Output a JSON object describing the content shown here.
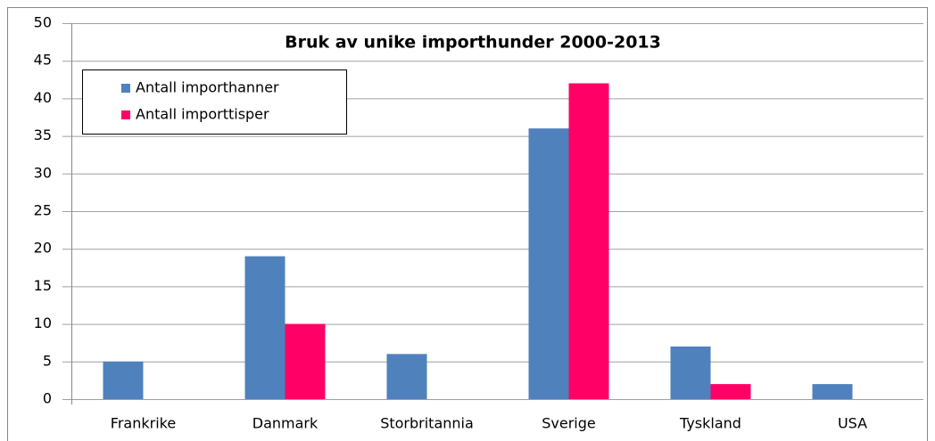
{
  "chart_data": {
    "type": "bar",
    "title": "Bruk av unike importhunder 2000-2013",
    "categories": [
      "Frankrike",
      "Danmark",
      "Storbritannia",
      "Sverige",
      "Tyskland",
      "USA"
    ],
    "series": [
      {
        "name": "Antall importhanner",
        "color": "#4f81bd",
        "values": [
          5,
          19,
          6,
          36,
          7,
          2
        ]
      },
      {
        "name": "Antall importtisper",
        "color": "#ff0066",
        "values": [
          0,
          10,
          0,
          42,
          2,
          0
        ]
      }
    ],
    "ylim": [
      0,
      50
    ],
    "yticks": [
      0,
      5,
      10,
      15,
      20,
      25,
      30,
      35,
      40,
      45,
      50
    ],
    "grid": true,
    "legend": "top-left"
  }
}
